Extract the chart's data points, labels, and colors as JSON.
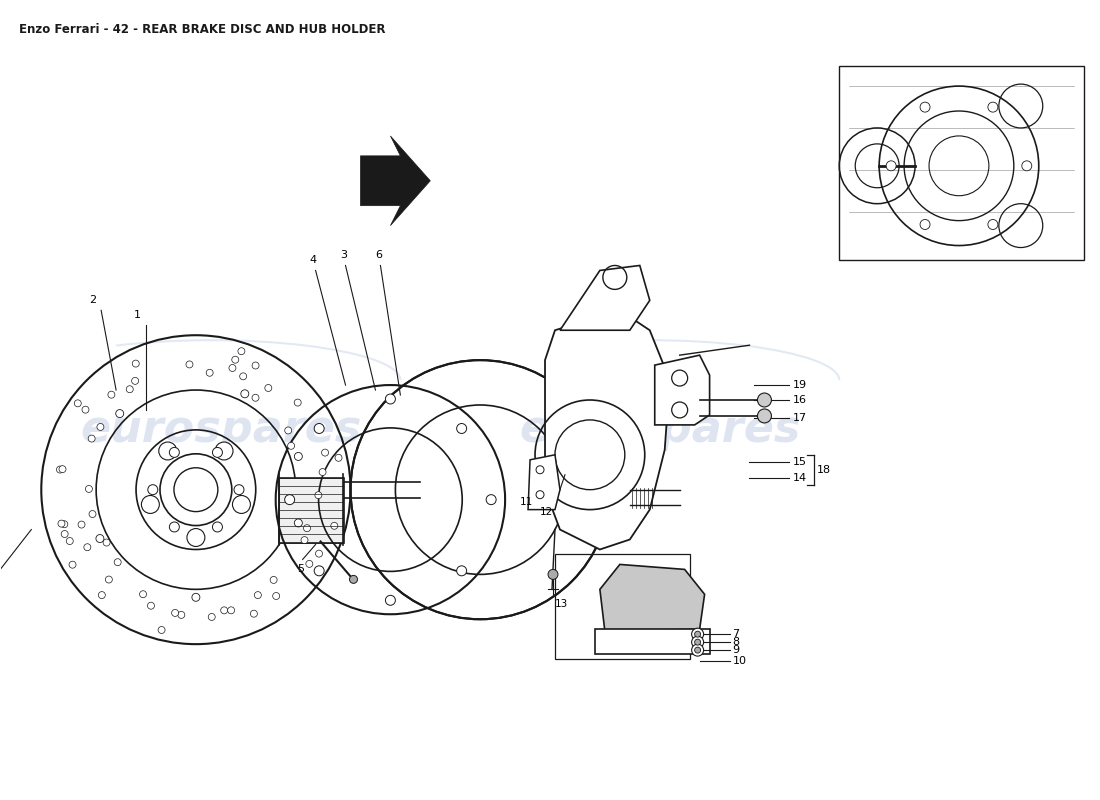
{
  "title": "Enzo Ferrari - 42 - REAR BRAKE DISC AND HUB HOLDER",
  "bg_color": "#ffffff",
  "line_color": "#1a1a1a",
  "watermark_color": "#c8d4e8",
  "fig_width": 11.0,
  "fig_height": 8.0,
  "dpi": 100
}
